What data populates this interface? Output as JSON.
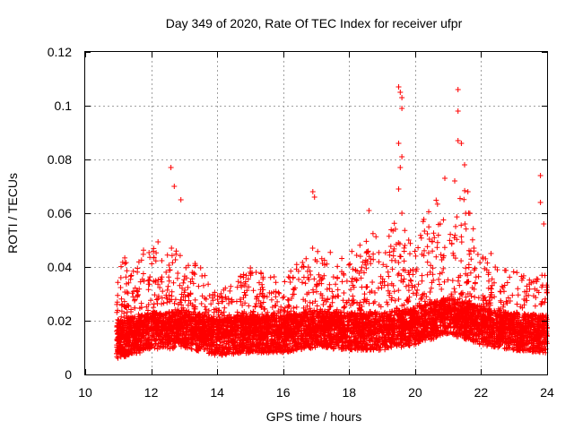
{
  "chart_data": {
    "type": "scatter",
    "title": "Day 349 of 2020, Rate Of TEC Index for receiver ufpr",
    "xlabel": "GPS time / hours",
    "ylabel": "ROTI / TECUs",
    "xlim": [
      10,
      24
    ],
    "ylim": [
      0,
      0.12
    ],
    "x_ticks": [
      "10",
      "12",
      "14",
      "16",
      "18",
      "20",
      "22",
      "24"
    ],
    "y_ticks": [
      "0",
      "0.02",
      "0.04",
      "0.06",
      "0.08",
      "0.1",
      "0.12"
    ],
    "grid": true,
    "marker": "plus",
    "series_color": "#ff0000",
    "series": [
      {
        "name": "ROTI",
        "x_start": 10.95,
        "x_end": 24.0,
        "baseline_envelope": [
          [
            11.0,
            0.013
          ],
          [
            12.0,
            0.016
          ],
          [
            13.0,
            0.017
          ],
          [
            14.0,
            0.014
          ],
          [
            15.0,
            0.015
          ],
          [
            16.0,
            0.015
          ],
          [
            17.0,
            0.017
          ],
          [
            18.0,
            0.016
          ],
          [
            19.0,
            0.016
          ],
          [
            20.0,
            0.018
          ],
          [
            21.0,
            0.022
          ],
          [
            22.0,
            0.018
          ],
          [
            23.0,
            0.016
          ],
          [
            24.0,
            0.015
          ]
        ],
        "upper_envelope": [
          [
            11.0,
            0.045
          ],
          [
            11.5,
            0.042
          ],
          [
            12.0,
            0.05
          ],
          [
            12.5,
            0.05
          ],
          [
            13.0,
            0.045
          ],
          [
            13.5,
            0.04
          ],
          [
            14.0,
            0.03
          ],
          [
            15.0,
            0.04
          ],
          [
            16.0,
            0.035
          ],
          [
            17.0,
            0.05
          ],
          [
            17.5,
            0.045
          ],
          [
            18.0,
            0.045
          ],
          [
            18.5,
            0.055
          ],
          [
            19.0,
            0.05
          ],
          [
            19.5,
            0.06
          ],
          [
            20.0,
            0.05
          ],
          [
            20.5,
            0.065
          ],
          [
            21.0,
            0.065
          ],
          [
            21.5,
            0.07
          ],
          [
            22.0,
            0.045
          ],
          [
            22.5,
            0.04
          ],
          [
            23.0,
            0.04
          ],
          [
            23.5,
            0.035
          ],
          [
            24.0,
            0.04
          ]
        ],
        "outliers": [
          [
            12.6,
            0.077
          ],
          [
            12.7,
            0.07
          ],
          [
            12.9,
            0.065
          ],
          [
            16.9,
            0.068
          ],
          [
            16.95,
            0.066
          ],
          [
            18.6,
            0.061
          ],
          [
            19.5,
            0.107
          ],
          [
            19.55,
            0.105
          ],
          [
            19.6,
            0.103
          ],
          [
            19.6,
            0.099
          ],
          [
            19.5,
            0.086
          ],
          [
            19.6,
            0.081
          ],
          [
            19.55,
            0.077
          ],
          [
            19.5,
            0.069
          ],
          [
            19.6,
            0.06
          ],
          [
            21.3,
            0.106
          ],
          [
            21.3,
            0.098
          ],
          [
            21.3,
            0.087
          ],
          [
            21.4,
            0.086
          ],
          [
            21.5,
            0.078
          ],
          [
            20.9,
            0.073
          ],
          [
            21.2,
            0.072
          ],
          [
            21.6,
            0.068
          ],
          [
            23.8,
            0.074
          ],
          [
            23.8,
            0.064
          ],
          [
            23.9,
            0.056
          ],
          [
            22.3,
            0.045
          ]
        ],
        "point_count": 7000
      }
    ]
  }
}
